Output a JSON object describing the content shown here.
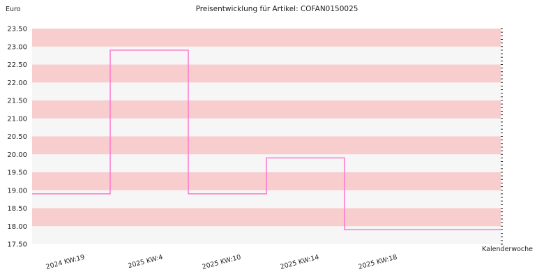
{
  "chart_data": {
    "type": "line",
    "step": true,
    "title": "Preisentwicklung für Artikel: COFAN0150025",
    "ylabel": "Euro",
    "xlabel": "Kalenderwoche",
    "ylim": [
      17.5,
      23.5
    ],
    "y_ticks": [
      "17.50",
      "18.00",
      "18.50",
      "19.00",
      "19.50",
      "20.00",
      "20.50",
      "21.00",
      "21.50",
      "22.00",
      "22.50",
      "23.00",
      "23.50"
    ],
    "categories": [
      "2024 KW:19",
      "2025 KW:4",
      "2025 KW:10",
      "2025 KW:14",
      "2025 KW:18"
    ],
    "values": [
      18.9,
      22.9,
      18.9,
      19.9,
      17.9
    ],
    "line_color": "#ff77cc",
    "band_colors": [
      "#f8cdcd",
      "#f6f6f6"
    ],
    "grid": true
  }
}
